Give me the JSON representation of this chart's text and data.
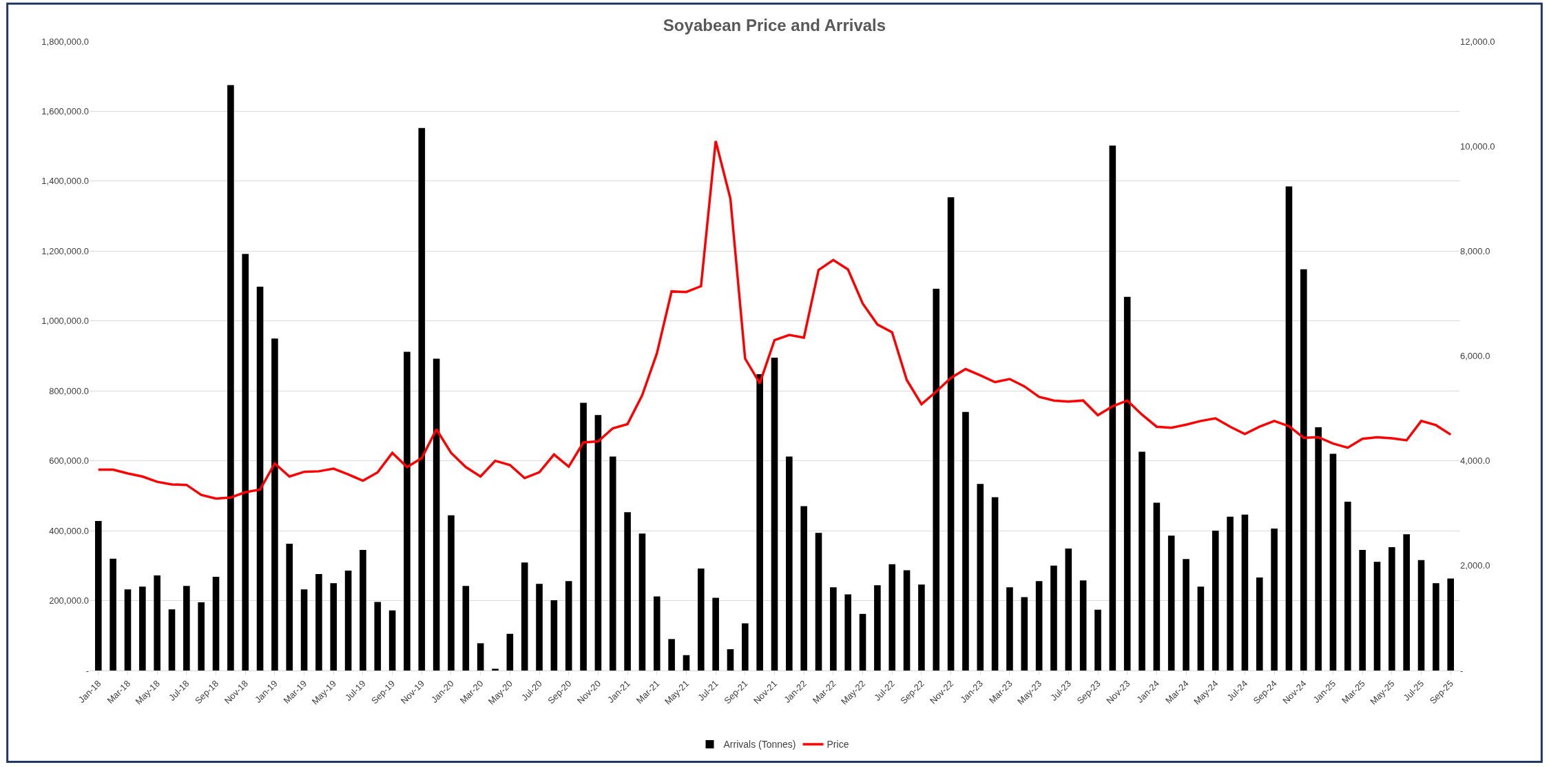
{
  "chart_data": {
    "type": "bar",
    "title": "Soyabean Price and Arrivals",
    "categories": [
      "Jan-18",
      null,
      "Mar-18",
      null,
      "May-18",
      null,
      "Jul-18",
      null,
      "Sep-18",
      null,
      "Nov-18",
      null,
      "Jan-19",
      null,
      "Mar-19",
      null,
      "May-19",
      null,
      "Jul-19",
      null,
      "Sep-19",
      null,
      "Nov-19",
      null,
      "Jan-20",
      null,
      "Mar-20",
      null,
      "May-20",
      null,
      "Jul-20",
      null,
      "Sep-20",
      null,
      "Nov-20",
      null,
      "Jan-21",
      null,
      "Mar-21",
      null,
      "May-21",
      null,
      "Jul-21",
      null,
      "Sep-21",
      null,
      "Nov-21",
      null,
      "Jan-22",
      null,
      "Mar-22",
      null,
      "May-22",
      null,
      "Jul-22",
      null,
      "Sep-22",
      null,
      "Nov-22",
      null,
      "Jan-23",
      null,
      "Mar-23",
      null,
      "May-23",
      null,
      "Jul-23",
      null,
      "Sep-23",
      null,
      "Nov-23",
      null,
      "Jan-24",
      null,
      "Mar-24",
      null,
      "May-24",
      null,
      "Jul-24",
      null,
      "Sep-24",
      null,
      "Nov-24",
      null,
      "Jan-25",
      null,
      "Mar-25",
      null,
      "May-25",
      null,
      "Jul-25",
      null,
      "Sep-25"
    ],
    "series": [
      {
        "name": "Arrivals (Tonnes)",
        "color": "#000000",
        "values": [
          428000,
          320000,
          232000,
          240000,
          272000,
          175000,
          242000,
          195000,
          268000,
          1675000,
          1192000,
          1098000,
          950000,
          363000,
          232000,
          276000,
          250000,
          286000,
          345000,
          196000,
          172000,
          912000,
          1552000,
          892000,
          444000,
          242000,
          78000,
          5000,
          105000,
          309000,
          248000,
          201000,
          256000,
          766000,
          731000,
          612000,
          453000,
          392000,
          212000,
          90000,
          44000,
          292000,
          208000,
          61000,
          135000,
          848000,
          895000,
          612000,
          470000,
          394000,
          238000,
          218000,
          162000,
          244000,
          304000,
          287000,
          246000,
          1092000,
          1354000,
          740000,
          534000,
          496000,
          238000,
          210000,
          256000,
          300000,
          349000,
          258000,
          174000,
          1502000,
          1069000,
          626000,
          480000,
          386000,
          319000,
          240000,
          400000,
          440000,
          446000,
          266000,
          406000,
          1385000,
          1148000,
          696000,
          620000,
          483000,
          345000,
          311000,
          353000,
          390000,
          316000,
          250000,
          263000
        ]
      },
      {
        "name": "Price",
        "type": "line",
        "axis": "y2",
        "color": "#ff0000",
        "values": [
          3830,
          3830,
          3760,
          3700,
          3600,
          3550,
          3540,
          3350,
          3280,
          3300,
          3400,
          3450,
          3950,
          3700,
          3790,
          3800,
          3850,
          3740,
          3620,
          3780,
          4150,
          3880,
          4050,
          4600,
          4150,
          3880,
          3700,
          4000,
          3920,
          3670,
          3780,
          4120,
          3890,
          4350,
          4370,
          4620,
          4700,
          5250,
          6050,
          7230,
          7220,
          7330,
          10100,
          9000,
          5950,
          5480,
          6300,
          6400,
          6350,
          7640,
          7830,
          7650,
          7000,
          6600,
          6450,
          5540,
          5080,
          5320,
          5580,
          5750,
          5630,
          5500,
          5560,
          5420,
          5220,
          5150,
          5130,
          5150,
          4870,
          5040,
          5150,
          4880,
          4650,
          4630,
          4690,
          4760,
          4810,
          4650,
          4510,
          4650,
          4760,
          4660,
          4440,
          4450,
          4330,
          4250,
          4420,
          4450,
          4430,
          4390,
          4760,
          4680,
          4500
        ]
      }
    ],
    "ylim": [
      0,
      1800000
    ],
    "yticks": [
      {
        "value": 0,
        "label": "-"
      },
      {
        "value": 200000,
        "label": "200,000.0"
      },
      {
        "value": 400000,
        "label": "400,000.0"
      },
      {
        "value": 600000,
        "label": "600,000.0"
      },
      {
        "value": 800000,
        "label": "800,000.0"
      },
      {
        "value": 1000000,
        "label": "1,000,000.0"
      },
      {
        "value": 1200000,
        "label": "1,200,000.0"
      },
      {
        "value": 1400000,
        "label": "1,400,000.0"
      },
      {
        "value": 1600000,
        "label": "1,600,000.0"
      },
      {
        "value": 1800000,
        "label": "1,800,000.0"
      }
    ],
    "y2lim": [
      0,
      12000
    ],
    "y2ticks": [
      {
        "value": 0,
        "label": "-"
      },
      {
        "value": 2000,
        "label": "2,000.0"
      },
      {
        "value": 4000,
        "label": "4,000.0"
      },
      {
        "value": 6000,
        "label": "6,000.0"
      },
      {
        "value": 8000,
        "label": "8,000.0"
      },
      {
        "value": 10000,
        "label": "10,000.0"
      },
      {
        "value": 12000,
        "label": "12,000.0"
      }
    ],
    "grid": "y",
    "legend": "bottom",
    "marker": "none",
    "line_style": "solid"
  }
}
